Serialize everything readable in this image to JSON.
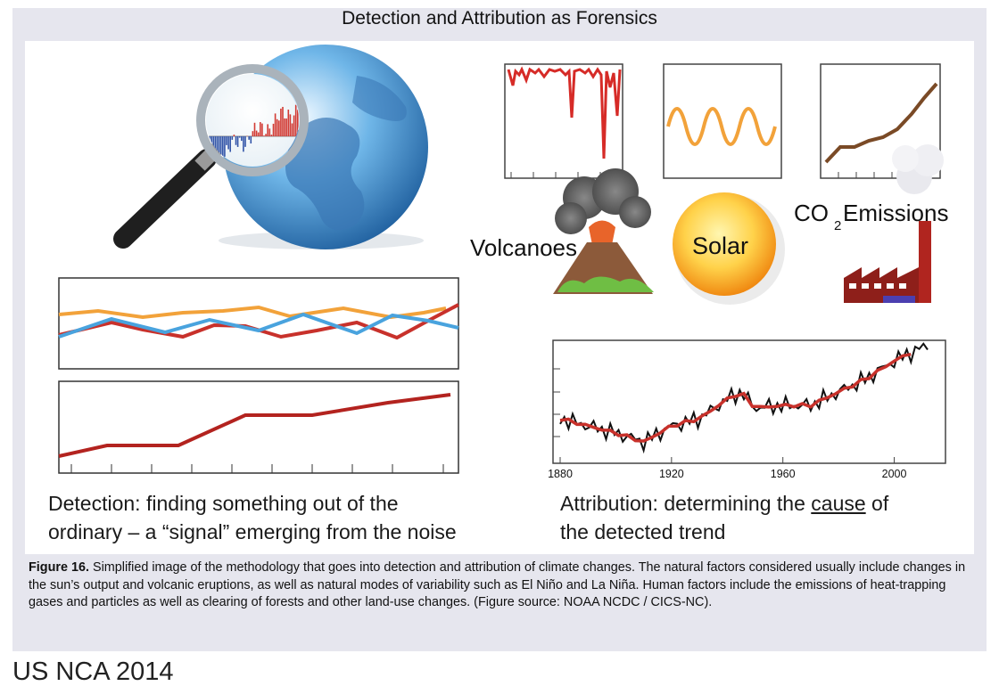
{
  "title": "Detection and Attribution as Forensics",
  "labels": {
    "volcanoes": "Volcanoes",
    "solar": "Solar",
    "co2_prefix": "CO",
    "co2_sub": "2",
    "co2_suffix": " Emissions"
  },
  "attribution_axis": {
    "ticks": [
      "1880",
      "1920",
      "1960",
      "2000"
    ]
  },
  "captions": {
    "detection_line1": "Detection: finding something out of the",
    "detection_line2": "ordinary – a “signal” emerging from the noise",
    "attribution_prefix": "Attribution: determining the ",
    "attribution_underlined": "cause",
    "attribution_suffix": " of",
    "attribution_line2": "the detected trend"
  },
  "figure_caption": {
    "label": "Figure 16.",
    "text": " Simplified image of the methodology that goes into detection and attribution of climate changes. The natural factors considered usually include changes in the sun’s output and volcanic eruptions, as well as natural modes of variability such as El Niño and La Niña. Human factors include the emissions of heat-trapping gases and particles as well as clearing of forests and other land-use changes. (Figure source: NOAA NCDC / CICS-NC)."
  },
  "footer": "US NCA 2014",
  "colors": {
    "red": "#c8312b",
    "orange": "#f2a23a",
    "blue": "#49a3de",
    "brown": "#7a4a26",
    "background": "#e6e6ee"
  }
}
